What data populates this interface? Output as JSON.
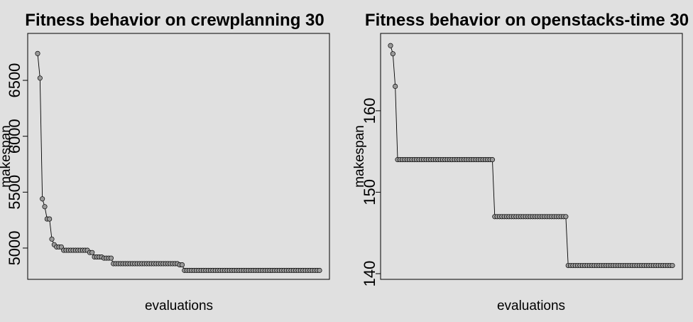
{
  "chart_data": [
    {
      "type": "line",
      "title": "Fitness behavior on crewplanning 30",
      "xlabel": "evaluations",
      "ylabel": "makespan",
      "y_ticks": [
        5000,
        5500,
        6000,
        6500
      ],
      "ylim": [
        4720,
        6920
      ],
      "x": [
        1,
        2,
        3,
        4,
        5,
        6,
        7,
        8,
        9,
        10,
        11,
        12,
        13,
        14,
        15,
        16,
        17,
        18,
        19,
        20,
        21,
        22,
        23,
        24,
        25,
        26,
        27,
        28,
        29,
        30,
        31,
        32,
        33,
        34,
        35,
        36,
        37,
        38,
        39,
        40,
        41,
        42,
        43,
        44,
        45,
        46,
        47,
        48,
        49,
        50,
        51,
        52,
        53,
        54,
        55,
        56,
        57,
        58,
        59,
        60,
        61,
        62,
        63,
        64,
        65,
        66,
        67,
        68,
        69,
        70,
        71,
        72,
        73,
        74,
        75,
        76,
        77,
        78,
        79,
        80,
        81,
        82,
        83,
        84,
        85,
        86,
        87,
        88,
        89,
        90,
        91,
        92,
        93,
        94,
        95,
        96,
        97,
        98,
        99,
        100,
        101,
        102,
        103,
        104,
        105,
        106,
        107,
        108,
        109,
        110,
        111,
        112,
        113,
        114,
        115,
        116,
        117,
        118,
        119,
        120
      ],
      "values": [
        6740,
        6520,
        5440,
        5370,
        5260,
        5260,
        5080,
        5030,
        5010,
        5010,
        5010,
        4980,
        4980,
        4980,
        4980,
        4980,
        4980,
        4980,
        4980,
        4980,
        4980,
        4980,
        4960,
        4960,
        4920,
        4920,
        4920,
        4920,
        4910,
        4910,
        4910,
        4910,
        4860,
        4860,
        4860,
        4860,
        4860,
        4860,
        4860,
        4860,
        4860,
        4860,
        4860,
        4860,
        4860,
        4860,
        4860,
        4860,
        4860,
        4860,
        4860,
        4860,
        4860,
        4860,
        4860,
        4860,
        4860,
        4860,
        4860,
        4860,
        4850,
        4850,
        4800,
        4800,
        4800,
        4800,
        4800,
        4800,
        4800,
        4800,
        4800,
        4800,
        4800,
        4800,
        4800,
        4800,
        4800,
        4800,
        4800,
        4800,
        4800,
        4800,
        4800,
        4800,
        4800,
        4800,
        4800,
        4800,
        4800,
        4800,
        4800,
        4800,
        4800,
        4800,
        4800,
        4800,
        4800,
        4800,
        4800,
        4800,
        4800,
        4800,
        4800,
        4800,
        4800,
        4800,
        4800,
        4800,
        4800,
        4800,
        4800,
        4800,
        4800,
        4800,
        4800,
        4800,
        4800,
        4800,
        4800,
        4800
      ],
      "grid": false
    },
    {
      "type": "line",
      "title": "Fitness behavior on openstacks-time 30",
      "xlabel": "evaluations",
      "ylabel": "makespan",
      "y_ticks": [
        140,
        150,
        160
      ],
      "ylim": [
        139.3,
        169.5
      ],
      "x": [
        1,
        2,
        3,
        4,
        5,
        6,
        7,
        8,
        9,
        10,
        11,
        12,
        13,
        14,
        15,
        16,
        17,
        18,
        19,
        20,
        21,
        22,
        23,
        24,
        25,
        26,
        27,
        28,
        29,
        30,
        31,
        32,
        33,
        34,
        35,
        36,
        37,
        38,
        39,
        40,
        41,
        42,
        43,
        44,
        45,
        46,
        47,
        48,
        49,
        50,
        51,
        52,
        53,
        54,
        55,
        56,
        57,
        58,
        59,
        60,
        61,
        62,
        63,
        64,
        65,
        66,
        67,
        68,
        69,
        70,
        71,
        72,
        73,
        74,
        75,
        76,
        77,
        78,
        79,
        80,
        81,
        82,
        83,
        84,
        85,
        86,
        87,
        88,
        89,
        90,
        91,
        92,
        93,
        94,
        95,
        96,
        97,
        98,
        99,
        100,
        101,
        102,
        103,
        104,
        105,
        106,
        107,
        108,
        109,
        110,
        111,
        112,
        113,
        114,
        115,
        116,
        117,
        118,
        119,
        120
      ],
      "values": [
        168,
        167,
        163,
        154,
        154,
        154,
        154,
        154,
        154,
        154,
        154,
        154,
        154,
        154,
        154,
        154,
        154,
        154,
        154,
        154,
        154,
        154,
        154,
        154,
        154,
        154,
        154,
        154,
        154,
        154,
        154,
        154,
        154,
        154,
        154,
        154,
        154,
        154,
        154,
        154,
        154,
        154,
        154,
        154,
        147,
        147,
        147,
        147,
        147,
        147,
        147,
        147,
        147,
        147,
        147,
        147,
        147,
        147,
        147,
        147,
        147,
        147,
        147,
        147,
        147,
        147,
        147,
        147,
        147,
        147,
        147,
        147,
        147,
        147,
        147,
        141,
        141,
        141,
        141,
        141,
        141,
        141,
        141,
        141,
        141,
        141,
        141,
        141,
        141,
        141,
        141,
        141,
        141,
        141,
        141,
        141,
        141,
        141,
        141,
        141,
        141,
        141,
        141,
        141,
        141,
        141,
        141,
        141,
        141,
        141,
        141,
        141,
        141,
        141,
        141,
        141,
        141,
        141,
        141,
        141
      ],
      "grid": false
    }
  ]
}
